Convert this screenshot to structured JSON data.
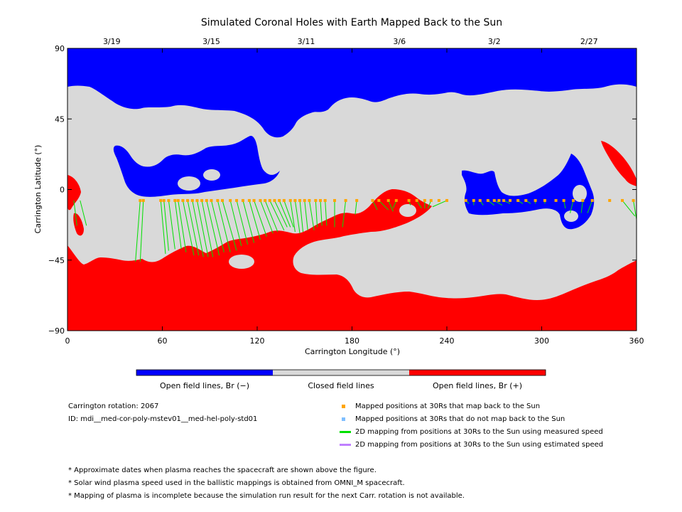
{
  "chart_data": {
    "type": "map",
    "title": "Simulated Coronal Holes with Earth Mapped Back to the Sun",
    "xlabel": "Carrington Longitude (°)",
    "ylabel": "Carrington Latitude (°)",
    "xlim": [
      0,
      360
    ],
    "ylim": [
      -90,
      90
    ],
    "x_ticks": [
      0,
      60,
      120,
      180,
      240,
      300,
      360
    ],
    "x_tick_labels": [
      "0",
      "60",
      "120",
      "180",
      "240",
      "300",
      "360"
    ],
    "y_ticks": [
      90,
      45,
      0,
      -45,
      -90
    ],
    "y_tick_labels": [
      "90",
      "45",
      "0",
      "−45",
      "−90"
    ],
    "top_axis_dates": [
      {
        "label": "3/19",
        "lon": 28
      },
      {
        "label": "3/15",
        "lon": 91
      },
      {
        "label": "3/11",
        "lon": 151
      },
      {
        "label": "3/6",
        "lon": 210
      },
      {
        "label": "3/2",
        "lon": 270
      },
      {
        "label": "2/27",
        "lon": 330
      }
    ],
    "colors": {
      "open_negative": "#0000ff",
      "closed": "#d9d9d9",
      "open_positive": "#ff0000",
      "mapped": "#ffa500",
      "not_mapped": "#7fbfff",
      "measured_line": "#00e000",
      "estimated_line": "#c080ff"
    },
    "colorbar": [
      {
        "label": "Open field lines, Br (−)",
        "color": "#0000ff"
      },
      {
        "label": "Closed field lines",
        "color": "#d9d9d9"
      },
      {
        "label": "Open field lines, Br (+)",
        "color": "#ff0000"
      }
    ],
    "spacecraft_latitude": -7,
    "mapped_longitudes": [
      46,
      48,
      59,
      61,
      64,
      68,
      70,
      73,
      76,
      79,
      82,
      85,
      88,
      91,
      95,
      98,
      103,
      107,
      111,
      115,
      118,
      122,
      125,
      128,
      131,
      134,
      137,
      141,
      144,
      147,
      150,
      153,
      157,
      160,
      163,
      169,
      176,
      183,
      193,
      197,
      203,
      208,
      216,
      221,
      226,
      230,
      235,
      240,
      252,
      257,
      261,
      266,
      270,
      273,
      276,
      280,
      285,
      290,
      296,
      302,
      309,
      314,
      320,
      326,
      332,
      343,
      351,
      358
    ],
    "mapping_lines": [
      {
        "from": 46,
        "to": [
          43,
          -46
        ]
      },
      {
        "from": 48,
        "to": [
          46,
          -46
        ]
      },
      {
        "from": 59,
        "to": [
          62,
          -41
        ]
      },
      {
        "from": 61,
        "to": [
          64,
          -39
        ]
      },
      {
        "from": 64,
        "to": [
          68,
          -38
        ]
      },
      {
        "from": 68,
        "to": [
          72,
          -38
        ]
      },
      {
        "from": 70,
        "to": [
          75,
          -40
        ]
      },
      {
        "from": 73,
        "to": [
          80,
          -42
        ]
      },
      {
        "from": 76,
        "to": [
          83,
          -42
        ]
      },
      {
        "from": 79,
        "to": [
          86,
          -43
        ]
      },
      {
        "from": 82,
        "to": [
          89,
          -43
        ]
      },
      {
        "from": 85,
        "to": [
          92,
          -43
        ]
      },
      {
        "from": 88,
        "to": [
          96,
          -42
        ]
      },
      {
        "from": 91,
        "to": [
          99,
          -40
        ]
      },
      {
        "from": 95,
        "to": [
          103,
          -40
        ]
      },
      {
        "from": 98,
        "to": [
          107,
          -39
        ]
      },
      {
        "from": 103,
        "to": [
          110,
          -36
        ]
      },
      {
        "from": 107,
        "to": [
          114,
          -35
        ]
      },
      {
        "from": 111,
        "to": [
          118,
          -34
        ]
      },
      {
        "from": 115,
        "to": [
          122,
          -32
        ]
      },
      {
        "from": 118,
        "to": [
          126,
          -30
        ]
      },
      {
        "from": 122,
        "to": [
          130,
          -28
        ]
      },
      {
        "from": 125,
        "to": [
          133,
          -27
        ]
      },
      {
        "from": 128,
        "to": [
          137,
          -26
        ]
      },
      {
        "from": 131,
        "to": [
          139,
          -24
        ]
      },
      {
        "from": 134,
        "to": [
          141,
          -24
        ]
      },
      {
        "from": 137,
        "to": [
          143,
          -24
        ]
      },
      {
        "from": 141,
        "to": [
          144,
          -27
        ]
      },
      {
        "from": 144,
        "to": [
          147,
          -28
        ]
      },
      {
        "from": 147,
        "to": [
          149,
          -27
        ]
      },
      {
        "from": 150,
        "to": [
          152,
          -26
        ]
      },
      {
        "from": 153,
        "to": [
          156,
          -26
        ]
      },
      {
        "from": 157,
        "to": [
          158,
          -24
        ]
      },
      {
        "from": 160,
        "to": [
          161,
          -23
        ]
      },
      {
        "from": 163,
        "to": [
          164,
          -23
        ]
      },
      {
        "from": 169,
        "to": [
          169,
          -24
        ]
      },
      {
        "from": 176,
        "to": [
          174,
          -24
        ]
      },
      {
        "from": 183,
        "to": [
          182,
          -16
        ]
      },
      {
        "from": 193,
        "to": [
          196,
          -13
        ]
      },
      {
        "from": 197,
        "to": [
          203,
          -13
        ]
      },
      {
        "from": 203,
        "to": [
          206,
          -14
        ]
      },
      {
        "from": 208,
        "to": [
          206,
          -12
        ]
      },
      {
        "from": 216,
        "to": [
          217,
          -10
        ]
      },
      {
        "from": 221,
        "to": [
          224,
          -12
        ]
      },
      {
        "from": 226,
        "to": [
          226,
          -12
        ]
      },
      {
        "from": 230,
        "to": [
          228,
          -12
        ]
      },
      {
        "from": 240,
        "to": [
          231,
          -11
        ]
      },
      {
        "from": 252,
        "to": [
          254,
          -9
        ]
      },
      {
        "from": 257,
        "to": [
          257,
          -10
        ]
      },
      {
        "from": 261,
        "to": [
          263,
          -10
        ]
      },
      {
        "from": 266,
        "to": [
          270,
          -10
        ]
      },
      {
        "from": 270,
        "to": [
          275,
          -10
        ]
      },
      {
        "from": 276,
        "to": [
          280,
          -9
        ]
      },
      {
        "from": 285,
        "to": [
          288,
          -9
        ]
      },
      {
        "from": 290,
        "to": [
          293,
          -9
        ]
      },
      {
        "from": 296,
        "to": [
          296,
          -9
        ]
      },
      {
        "from": 302,
        "to": [
          302,
          -9
        ]
      },
      {
        "from": 314,
        "to": [
          315,
          -12
        ]
      },
      {
        "from": 320,
        "to": [
          318,
          -15
        ]
      },
      {
        "from": 326,
        "to": [
          325,
          -15
        ]
      },
      {
        "from": 332,
        "to": [
          329,
          -15
        ]
      },
      {
        "from": 351,
        "to": [
          359,
          -17
        ]
      },
      {
        "from": 358,
        "to": [
          360,
          -19
        ]
      },
      {
        "from": 4,
        "to": [
          6,
          -23
        ]
      },
      {
        "from": 8,
        "to": [
          12,
          -23
        ]
      }
    ],
    "info": {
      "carrington_rotation": "Carrington rotation: 2067",
      "run_id": "ID: mdi__med-cor-poly-mstev01__med-hel-poly-std01"
    },
    "legend": [
      {
        "label": "Mapped positions at 30Rs that map back to the Sun",
        "kind": "square",
        "color": "#ffa500"
      },
      {
        "label": "Mapped positions at 30Rs that do not map back to the Sun",
        "kind": "square",
        "color": "#7fbfff"
      },
      {
        "label": "2D mapping from positions at 30Rs to the Sun using measured speed",
        "kind": "line",
        "color": "#00e000"
      },
      {
        "label": "2D mapping from positions at 30Rs to the Sun using estimated speed",
        "kind": "line",
        "color": "#c080ff"
      }
    ],
    "footnotes": [
      "* Approximate dates when plasma reaches the spacecraft are shown above the figure.",
      "* Solar wind plasma speed used in the ballistic mappings is obtained from OMNI_M spacecraft.",
      "* Mapping of plasma is incomplete because the simulation run result for the next Carr. rotation is not available."
    ]
  }
}
